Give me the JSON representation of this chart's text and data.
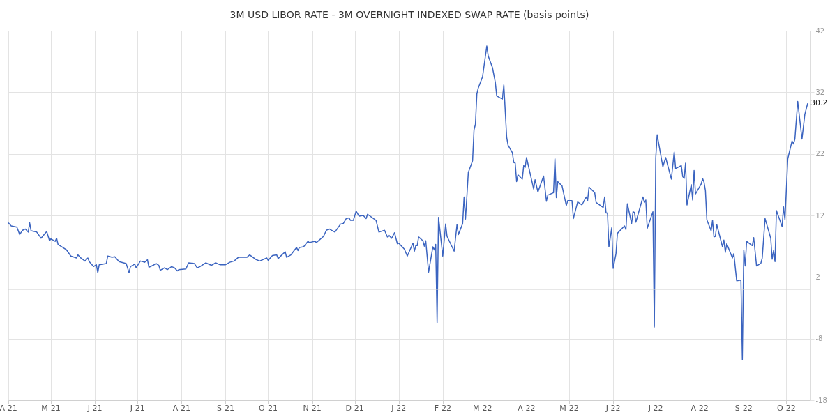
{
  "chart_data": {
    "type": "line",
    "title": "3M USD LIBOR RATE - 3M OVERNIGHT INDEXED SWAP RATE (basis points)",
    "series": [
      {
        "color": "#3b64c0",
        "x": [
          "2021-04-01",
          "2021-04-03",
          "2021-04-07",
          "2021-04-09",
          "2021-04-11",
          "2021-04-13",
          "2021-04-15",
          "2021-04-16",
          "2021-04-17",
          "2021-04-21",
          "2021-04-24",
          "2021-04-28",
          "2021-04-30",
          "2021-05-01",
          "2021-05-04",
          "2021-05-05",
          "2021-05-06",
          "2021-05-12",
          "2021-05-15",
          "2021-05-19",
          "2021-05-20",
          "2021-05-22",
          "2021-05-25",
          "2021-05-27",
          "2021-05-28",
          "2021-05-31",
          "2021-06-02",
          "2021-06-03",
          "2021-06-04",
          "2021-06-09",
          "2021-06-10",
          "2021-06-13",
          "2021-06-15",
          "2021-06-18",
          "2021-06-23",
          "2021-06-25",
          "2021-06-26",
          "2021-06-29",
          "2021-06-30",
          "2021-07-03",
          "2021-07-06",
          "2021-07-08",
          "2021-07-09",
          "2021-07-12",
          "2021-07-14",
          "2021-07-16",
          "2021-07-17",
          "2021-07-20",
          "2021-07-22",
          "2021-07-25",
          "2021-07-27",
          "2021-07-29",
          "2021-07-30",
          "2021-08-04",
          "2021-08-06",
          "2021-08-10",
          "2021-08-12",
          "2021-08-14",
          "2021-08-18",
          "2021-08-22",
          "2021-08-25",
          "2021-08-28",
          "2021-09-01",
          "2021-09-04",
          "2021-09-07",
          "2021-09-10",
          "2021-09-16",
          "2021-09-18",
          "2021-09-22",
          "2021-09-25",
          "2021-09-30",
          "2021-10-01",
          "2021-10-04",
          "2021-10-07",
          "2021-10-08",
          "2021-10-13",
          "2021-10-14",
          "2021-10-17",
          "2021-10-21",
          "2021-10-22",
          "2021-10-23",
          "2021-10-26",
          "2021-10-29",
          "2021-10-30",
          "2021-11-03",
          "2021-11-04",
          "2021-11-09",
          "2021-11-11",
          "2021-11-13",
          "2021-11-17",
          "2021-11-21",
          "2021-11-23",
          "2021-11-25",
          "2021-11-27",
          "2021-11-28",
          "2021-11-30",
          "2021-12-02",
          "2021-12-04",
          "2021-12-07",
          "2021-12-09",
          "2021-12-10",
          "2021-12-16",
          "2021-12-18",
          "2021-12-22",
          "2021-12-24",
          "2021-12-25",
          "2021-12-27",
          "2021-12-29",
          "2021-12-31",
          "2022-01-01",
          "2022-01-05",
          "2022-01-07",
          "2022-01-11",
          "2022-01-12",
          "2022-01-13",
          "2022-01-14",
          "2022-01-15",
          "2022-01-18",
          "2022-01-19",
          "2022-01-20",
          "2022-01-22",
          "2022-01-25",
          "2022-01-26",
          "2022-01-27",
          "2022-01-28",
          "2022-01-29",
          "2022-02-01",
          "2022-02-03",
          "2022-02-04",
          "2022-02-09",
          "2022-02-11",
          "2022-02-12",
          "2022-02-15",
          "2022-02-16",
          "2022-02-17",
          "2022-02-18",
          "2022-02-19",
          "2022-02-22",
          "2022-02-23",
          "2022-02-24",
          "2022-02-25",
          "2022-02-26",
          "2022-03-01",
          "2022-03-04",
          "2022-03-05",
          "2022-03-08",
          "2022-03-10",
          "2022-03-11",
          "2022-03-15",
          "2022-03-16",
          "2022-03-18",
          "2022-03-19",
          "2022-03-22",
          "2022-03-23",
          "2022-03-24",
          "2022-03-25",
          "2022-03-26",
          "2022-03-29",
          "2022-03-30",
          "2022-03-31",
          "2022-04-01",
          "2022-04-06",
          "2022-04-07",
          "2022-04-09",
          "2022-04-13",
          "2022-04-15",
          "2022-04-16",
          "2022-04-20",
          "2022-04-21",
          "2022-04-22",
          "2022-04-23",
          "2022-04-26",
          "2022-04-29",
          "2022-04-30",
          "2022-05-03",
          "2022-05-04",
          "2022-05-07",
          "2022-05-10",
          "2022-05-13",
          "2022-05-14",
          "2022-05-15",
          "2022-05-19",
          "2022-05-20",
          "2022-05-25",
          "2022-05-26",
          "2022-05-27",
          "2022-05-28",
          "2022-05-29",
          "2022-05-31",
          "2022-06-01",
          "2022-06-03",
          "2022-06-04",
          "2022-06-09",
          "2022-06-10",
          "2022-06-11",
          "2022-06-14",
          "2022-06-15",
          "2022-06-16",
          "2022-06-17",
          "2022-06-22",
          "2022-06-23",
          "2022-06-24",
          "2022-06-25",
          "2022-06-29",
          "2022-06-30",
          "2022-07-01",
          "2022-07-02",
          "2022-07-06",
          "2022-07-08",
          "2022-07-12",
          "2022-07-14",
          "2022-07-15",
          "2022-07-19",
          "2022-07-20",
          "2022-07-21",
          "2022-07-22",
          "2022-07-23",
          "2022-07-26",
          "2022-07-27",
          "2022-07-28",
          "2022-07-29",
          "2022-08-02",
          "2022-08-03",
          "2022-08-04",
          "2022-08-05",
          "2022-08-06",
          "2022-08-09",
          "2022-08-10",
          "2022-08-11",
          "2022-08-12",
          "2022-08-13",
          "2022-08-17",
          "2022-08-18",
          "2022-08-19",
          "2022-08-20",
          "2022-08-24",
          "2022-08-25",
          "2022-08-27",
          "2022-08-30",
          "2022-08-31",
          "2022-09-01",
          "2022-09-02",
          "2022-09-03",
          "2022-09-07",
          "2022-09-08",
          "2022-09-10",
          "2022-09-13",
          "2022-09-14",
          "2022-09-16",
          "2022-09-20",
          "2022-09-21",
          "2022-09-22",
          "2022-09-23",
          "2022-09-24",
          "2022-09-28",
          "2022-09-29",
          "2022-09-30",
          "2022-10-02",
          "2022-10-05",
          "2022-10-06",
          "2022-10-07",
          "2022-10-09",
          "2022-10-12",
          "2022-10-14",
          "2022-10-16"
        ],
        "values": [
          10.8,
          10.3,
          10.1,
          8.9,
          9.6,
          9.8,
          9.3,
          10.8,
          9.5,
          9.3,
          8.3,
          9.4,
          7.9,
          8.2,
          7.8,
          8.3,
          7.3,
          6.4,
          5.4,
          5.1,
          5.6,
          5.1,
          4.6,
          5.1,
          4.5,
          3.7,
          4.0,
          2.7,
          4.0,
          4.2,
          5.4,
          5.2,
          5.3,
          4.5,
          4.2,
          2.7,
          3.7,
          4.1,
          3.5,
          4.6,
          4.4,
          4.8,
          3.6,
          3.9,
          4.2,
          3.9,
          3.1,
          3.5,
          3.2,
          3.7,
          3.5,
          3.0,
          3.2,
          3.3,
          4.3,
          4.2,
          3.5,
          3.7,
          4.3,
          3.9,
          4.3,
          4.0,
          4.0,
          4.4,
          4.6,
          5.2,
          5.2,
          5.6,
          4.9,
          4.6,
          5.1,
          4.7,
          5.5,
          5.6,
          5.0,
          6.1,
          5.2,
          5.6,
          6.8,
          6.3,
          6.8,
          6.9,
          7.8,
          7.6,
          7.8,
          7.6,
          8.6,
          9.6,
          9.8,
          9.3,
          10.6,
          10.7,
          11.5,
          11.6,
          11.2,
          11.2,
          12.7,
          11.9,
          12.0,
          11.5,
          12.2,
          11.2,
          9.3,
          9.6,
          8.5,
          8.8,
          8.3,
          9.2,
          7.4,
          7.5,
          6.5,
          5.4,
          7.5,
          6.2,
          7.1,
          7.1,
          8.5,
          7.9,
          7.0,
          7.9,
          2.8,
          6.9,
          6.4,
          7.3,
          -5.4,
          11.7,
          5.4,
          10.6,
          8.6,
          6.2,
          10.5,
          8.9,
          10.7,
          15.0,
          11.4,
          15.2,
          19.0,
          20.9,
          25.9,
          26.8,
          31.7,
          32.7,
          34.5,
          39.5,
          37.9,
          36.0,
          33.6,
          31.4,
          30.9,
          33.2,
          24.7,
          23.4,
          22.2,
          20.6,
          20.5,
          17.5,
          18.6,
          17.9,
          20.1,
          19.8,
          21.4,
          16.3,
          17.8,
          15.8,
          18.4,
          14.3,
          15.3,
          15.7,
          21.2,
          14.9,
          17.5,
          16.8,
          13.6,
          14.4,
          14.4,
          11.5,
          14.2,
          13.7,
          15.0,
          14.4,
          16.6,
          15.7,
          14.1,
          13.3,
          15.0,
          12.4,
          12.4,
          6.9,
          10.0,
          3.4,
          5.8,
          9.1,
          10.3,
          9.7,
          13.9,
          10.7,
          12.6,
          12.5,
          10.9,
          15.0,
          14.1,
          14.5,
          9.9,
          12.6,
          -6.1,
          21.3,
          25.1,
          19.9,
          21.4,
          17.9,
          22.3,
          19.6,
          20.1,
          18.3,
          18.0,
          20.5,
          13.7,
          17.0,
          14.5,
          19.3,
          15.5,
          17.1,
          18.0,
          17.4,
          16.0,
          11.3,
          9.5,
          11.2,
          8.5,
          8.6,
          10.5,
          6.9,
          8.0,
          6.0,
          7.4,
          5.1,
          5.8,
          1.4,
          1.5,
          -11.4,
          6.4,
          3.8,
          7.8,
          7.1,
          8.4,
          3.8,
          4.2,
          5.1,
          11.5,
          8.3,
          4.9,
          6.3,
          4.5,
          12.8,
          10.2,
          13.4,
          11.3,
          21.2,
          24.1,
          23.6,
          24.4,
          30.5,
          24.4,
          28.4,
          30.2
        ]
      }
    ],
    "value_labels": [
      null,
      "30.2"
    ],
    "xlim": [
      "2021-04-01",
      "2022-10-18"
    ],
    "xticks": [
      {
        "value": "2021-04-01",
        "label": "A-21"
      },
      {
        "value": "2021-05-01",
        "label": "M-21"
      },
      {
        "value": "2021-06-01",
        "label": "J-21"
      },
      {
        "value": "2021-07-01",
        "label": "J-21"
      },
      {
        "value": "2021-08-01",
        "label": "A-21"
      },
      {
        "value": "2021-09-01",
        "label": "S-21"
      },
      {
        "value": "2021-10-01",
        "label": "O-21"
      },
      {
        "value": "2021-11-01",
        "label": "N-21"
      },
      {
        "value": "2021-12-01",
        "label": "D-21"
      },
      {
        "value": "2022-01-01",
        "label": "J-22"
      },
      {
        "value": "2022-02-01",
        "label": "F-22"
      },
      {
        "value": "2022-03-01",
        "label": "M-22"
      },
      {
        "value": "2022-04-01",
        "label": "A-22"
      },
      {
        "value": "2022-05-01",
        "label": "M-22"
      },
      {
        "value": "2022-06-01",
        "label": "J-22"
      },
      {
        "value": "2022-07-01",
        "label": "J-22"
      },
      {
        "value": "2022-08-01",
        "label": "A-22"
      },
      {
        "value": "2022-09-01",
        "label": "S-22"
      },
      {
        "value": "2022-10-01",
        "label": "O-22"
      }
    ],
    "ylim": [
      -18,
      42
    ],
    "yticks": [
      -18,
      -8,
      2,
      12,
      22,
      32,
      42
    ],
    "ref_lines": [
      {
        "axis": "y",
        "value": 0,
        "color": "#cfcfcf"
      }
    ],
    "grid": true
  }
}
